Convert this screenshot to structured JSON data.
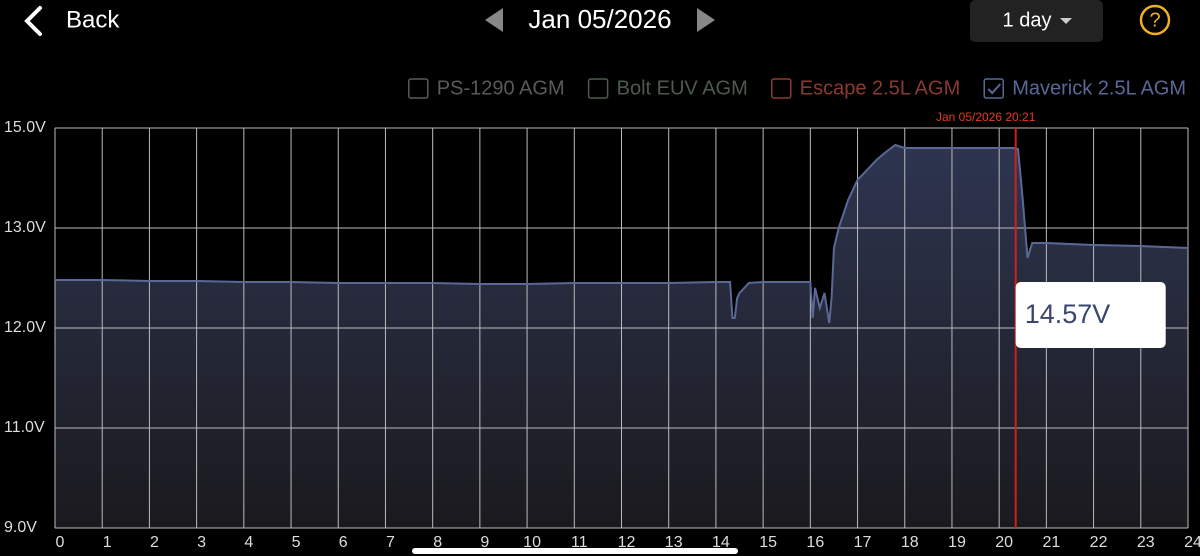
{
  "header": {
    "back": "Back",
    "date": "Jan 05/2026",
    "range": "1 day",
    "help": "?"
  },
  "chart_data": {
    "type": "line",
    "legend": [
      {
        "name": "PS-1290 AGM",
        "color": "#5a5a5a",
        "checked": false
      },
      {
        "name": "Bolt EUV AGM",
        "color": "#4d5a4d",
        "checked": false
      },
      {
        "name": "Escape 2.5L AGM",
        "color": "#8a3a32",
        "checked": false
      },
      {
        "name": "Maverick 2.5L AGM",
        "color": "#5a6896",
        "checked": true
      }
    ],
    "x": [
      0,
      1,
      2,
      3,
      4,
      5,
      6,
      7,
      8,
      9,
      10,
      11,
      12,
      13,
      14,
      14.3,
      14.35,
      14.4,
      14.45,
      14.5,
      14.7,
      15,
      16,
      16.05,
      16.1,
      16.2,
      16.3,
      16.4,
      16.45,
      16.5,
      16.6,
      16.8,
      17,
      17.2,
      17.4,
      17.6,
      17.8,
      18,
      19,
      20,
      20.3,
      20.4,
      20.5,
      20.6,
      20.7,
      21,
      22,
      23,
      24
    ],
    "series": [
      {
        "name": "Maverick 2.5L AGM",
        "color": "#5a6896",
        "values": [
          12.48,
          12.48,
          12.47,
          12.47,
          12.46,
          12.46,
          12.45,
          12.45,
          12.45,
          12.44,
          12.44,
          12.45,
          12.45,
          12.45,
          12.46,
          12.46,
          12.1,
          12.1,
          12.3,
          12.35,
          12.45,
          12.46,
          12.46,
          12.1,
          12.4,
          12.2,
          12.35,
          12.05,
          12.3,
          12.8,
          13.0,
          13.56,
          13.96,
          14.16,
          14.36,
          14.52,
          14.66,
          14.6,
          14.6,
          14.6,
          14.6,
          14.58,
          13.56,
          12.7,
          12.85,
          12.85,
          12.83,
          12.82,
          12.8
        ]
      }
    ],
    "xlim": [
      0,
      24
    ],
    "xticks": [
      0,
      1,
      2,
      3,
      4,
      5,
      6,
      7,
      8,
      9,
      10,
      11,
      12,
      13,
      14,
      15,
      16,
      17,
      18,
      19,
      20,
      21,
      22,
      23,
      24
    ],
    "ylim": [
      9,
      15
    ],
    "yticks": [
      {
        "value": 9,
        "label": "9.0V"
      },
      {
        "value": 11,
        "label": "11.0V"
      },
      {
        "value": 12,
        "label": "12.0V"
      },
      {
        "value": 13,
        "label": "13.0V"
      },
      {
        "value": 15,
        "label": "15.0V"
      }
    ],
    "grid": true,
    "cursor": {
      "label": "Jan 05/2026 20:21",
      "x": 20.35,
      "value": 14.57,
      "value_label": "14.57V",
      "color": "#d0201a"
    }
  }
}
